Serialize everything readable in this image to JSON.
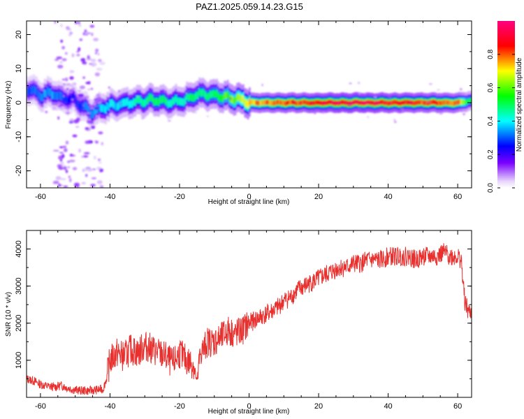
{
  "figure": {
    "title": "PAZ1.2025.059.14.23.G15"
  },
  "chart_data": [
    {
      "type": "heatmap",
      "title": "PAZ1.2025.059.14.23.G15",
      "xlabel": "Height of straight line (km)",
      "ylabel": "Frequency (Hz)",
      "xlim": [
        -64,
        64
      ],
      "ylim": [
        -25,
        24
      ],
      "xticks": [
        -60,
        -40,
        -20,
        0,
        20,
        40,
        60
      ],
      "yticks": [
        -20,
        -10,
        0,
        10,
        20
      ],
      "colorbar": {
        "label": "Normalized spectral amplitude",
        "range": [
          0,
          1
        ],
        "ticks": [
          0.0,
          0.2,
          0.4,
          0.6,
          0.8
        ],
        "tick_labels": [
          "0.0",
          "0.2",
          "0.4",
          "0.6",
          "0.8"
        ]
      },
      "ridge": {
        "x": [
          -63,
          -60,
          -57,
          -54,
          -51,
          -48,
          -46,
          -44,
          -41,
          -38,
          -35,
          -32,
          -29,
          -26,
          -23,
          -20,
          -17,
          -15,
          -12,
          -9,
          -6,
          -3,
          0,
          5,
          10,
          15,
          20,
          25,
          30,
          35,
          40,
          45,
          50,
          55,
          60,
          63
        ],
        "frequency": [
          4,
          2,
          3,
          1.5,
          1,
          -1,
          -3,
          -2,
          -1,
          -0.5,
          0,
          0.5,
          1,
          0.5,
          0,
          0.5,
          1.5,
          2.5,
          2.5,
          2,
          1.5,
          1,
          0,
          0,
          0,
          0,
          0,
          0,
          0,
          0,
          0,
          0,
          0,
          0,
          0,
          0.5
        ],
        "amplitude": [
          0.3,
          0.35,
          0.35,
          0.3,
          0.25,
          0.3,
          0.35,
          0.35,
          0.4,
          0.4,
          0.45,
          0.45,
          0.5,
          0.5,
          0.45,
          0.45,
          0.5,
          0.5,
          0.5,
          0.55,
          0.6,
          0.65,
          0.75,
          0.8,
          0.85,
          0.85,
          0.9,
          0.95,
          0.95,
          0.95,
          0.9,
          0.9,
          0.85,
          0.85,
          0.8,
          0.5
        ]
      }
    },
    {
      "type": "line",
      "xlabel": "Height of straight line (km)",
      "ylabel": "SNR (10 * v/v)",
      "xlim": [
        -64,
        64
      ],
      "ylim": [
        0,
        4500
      ],
      "xticks": [
        -60,
        -40,
        -20,
        0,
        20,
        40,
        60
      ],
      "yticks": [
        1000,
        2000,
        3000,
        4000
      ],
      "color": "#e8312f",
      "series": [
        {
          "x": [
            -64,
            -62,
            -60,
            -58,
            -56,
            -54,
            -52,
            -50,
            -48,
            -46,
            -44,
            -42,
            -41,
            -40,
            -38,
            -36,
            -34,
            -32,
            -30,
            -28,
            -26,
            -24,
            -22,
            -20,
            -18,
            -16,
            -15,
            -14,
            -13,
            -12,
            -10,
            -8,
            -6,
            -4,
            -2,
            0,
            2,
            4,
            6,
            8,
            10,
            12,
            14,
            16,
            18,
            20,
            22,
            24,
            26,
            28,
            30,
            32,
            34,
            36,
            38,
            40,
            42,
            44,
            46,
            48,
            50,
            52,
            54,
            56,
            58,
            60,
            61,
            62,
            63,
            64
          ],
          "values": [
            500,
            450,
            350,
            300,
            280,
            320,
            250,
            200,
            180,
            180,
            200,
            220,
            500,
            1000,
            1200,
            1100,
            1300,
            1200,
            1400,
            1300,
            1200,
            1100,
            900,
            1200,
            1000,
            900,
            400,
            1200,
            1300,
            1500,
            1500,
            1600,
            1800,
            1700,
            1800,
            2000,
            2100,
            2200,
            2300,
            2400,
            2600,
            2700,
            2900,
            3000,
            3100,
            3200,
            3300,
            3400,
            3500,
            3500,
            3600,
            3600,
            3700,
            3700,
            3700,
            3800,
            3800,
            3800,
            3800,
            3700,
            3800,
            3800,
            3800,
            3900,
            3800,
            3800,
            3700,
            2600,
            2300,
            2300
          ]
        }
      ]
    }
  ]
}
